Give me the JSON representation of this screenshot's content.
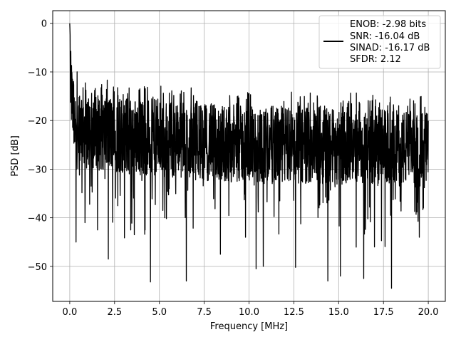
{
  "chart_data": {
    "type": "line",
    "xlabel": "Frequency [MHz]",
    "ylabel": "PSD [dB]",
    "xlim": [
      -0.95,
      20.95
    ],
    "ylim": [
      -57.2,
      2.6
    ],
    "xticks": [
      0.0,
      2.5,
      5.0,
      7.5,
      10.0,
      12.5,
      15.0,
      17.5,
      20.0
    ],
    "xtick_labels": [
      "0.0",
      "2.5",
      "5.0",
      "7.5",
      "10.0",
      "12.5",
      "15.0",
      "17.5",
      "20.0"
    ],
    "yticks": [
      0,
      -10,
      -20,
      -30,
      -40,
      -50
    ],
    "ytick_labels": [
      "0",
      "−10",
      "−20",
      "−30",
      "−40",
      "−50"
    ],
    "grid": true,
    "legend_position": "top-right",
    "legend_lines": [
      "ENOB: -2.98 bits",
      "SNR: -16.04 dB",
      "SINAD: -16.17 dB",
      "SFDR: 2.12"
    ],
    "series": [
      {
        "color": "#000000",
        "description": "noise-like PSD trace, ~2000 points from 0 to 20 MHz; peak at 0 MHz reaching ~0 dB, then band between about -13 and -38 dB with occasional dips",
        "x_start": 0.0,
        "x_end": 20.0,
        "n_points": 2000,
        "dc_peak_db": 0.0,
        "envelope_mean_db": [
          [
            0.0,
            -18
          ],
          [
            1.0,
            -22
          ],
          [
            3.0,
            -23
          ],
          [
            6.0,
            -24
          ],
          [
            10.0,
            -25
          ],
          [
            14.0,
            -25
          ],
          [
            20.0,
            -26
          ]
        ],
        "notable_dips": [
          [
            0.35,
            -45
          ],
          [
            0.85,
            -41
          ],
          [
            1.55,
            -42.5
          ],
          [
            2.15,
            -48.5
          ],
          [
            3.4,
            -42.5
          ],
          [
            3.6,
            -43.5
          ],
          [
            4.2,
            -42.5
          ],
          [
            4.5,
            -53.2
          ],
          [
            5.3,
            -40
          ],
          [
            6.5,
            -53
          ],
          [
            8.4,
            -47.5
          ],
          [
            9.8,
            -44
          ],
          [
            10.4,
            -50.5
          ],
          [
            10.8,
            -50
          ],
          [
            12.6,
            -50.2
          ],
          [
            14.4,
            -53
          ],
          [
            15.1,
            -52
          ],
          [
            16.4,
            -52.5
          ],
          [
            17.0,
            -46
          ],
          [
            17.95,
            -54.5
          ],
          [
            19.5,
            -44
          ]
        ]
      }
    ]
  }
}
